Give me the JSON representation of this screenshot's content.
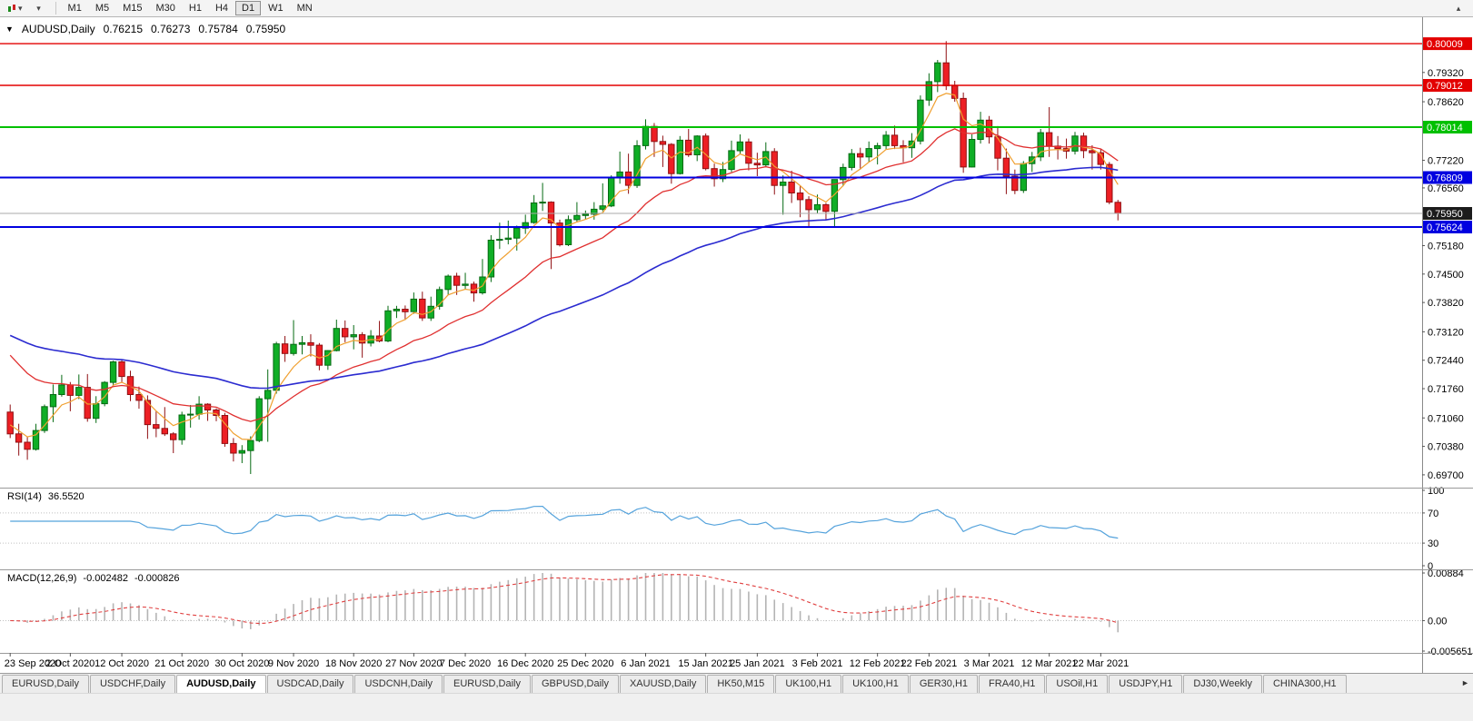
{
  "toolbar": {
    "timeframes": [
      "M1",
      "M5",
      "M15",
      "M30",
      "H1",
      "H4",
      "D1",
      "W1",
      "MN"
    ],
    "active_timeframe": "D1"
  },
  "icons": {
    "caret_down": "▾",
    "collapse_chart": "▴",
    "quote_collapse": "▼",
    "tab_scroll_right": "►"
  },
  "chart": {
    "symbol": "AUDUSD,Daily",
    "ohlc": {
      "open": "0.76215",
      "high": "0.76273",
      "low": "0.75784",
      "close": "0.75950"
    },
    "colors": {
      "up": "#0fae26",
      "up_border": "#056a12",
      "down": "#ed1f24",
      "down_border": "#8f0f12",
      "axis_border": "#8a8a8a",
      "separator": "#9a9a9a",
      "grid_dotted": "#c0c0c0",
      "date_tick": "#555555"
    },
    "price_range": {
      "top": 0.8064,
      "bottom": 0.69394
    },
    "levels": [
      {
        "label": "0.80009",
        "color": "#e30000",
        "width": 1.4
      },
      {
        "label": "0.79012",
        "color": "#e30000",
        "width": 1.4
      },
      {
        "label": "0.78014",
        "color": "#00c000",
        "width": 2
      },
      {
        "label": "0.76809",
        "color": "#0000e0",
        "width": 2
      },
      {
        "label": "0.75624",
        "color": "#0000e0",
        "width": 2
      }
    ],
    "current_price": {
      "label": "0.75950",
      "line_color": "#a8a8a8",
      "box_color": "#1c1c1c"
    },
    "axis_labels": [
      "0.79320",
      "0.78620",
      "0.77220",
      "0.76560",
      "0.75180",
      "0.74500",
      "0.73820",
      "0.73120",
      "0.72440",
      "0.71760",
      "0.71060",
      "0.70380",
      "0.69700"
    ],
    "moving_averages": [
      {
        "name": "ma-fast-orange",
        "period": 5,
        "seed": 0.71,
        "color": "#f0a030",
        "width": 1.2
      },
      {
        "name": "ma-mid-red",
        "period": 18,
        "seed": 0.7278,
        "color": "#e03030",
        "width": 1.3
      },
      {
        "name": "ma-slow-blue",
        "period": 55,
        "seed": 0.7312,
        "color": "#2b2bd0",
        "width": 1.6
      }
    ],
    "rsi": {
      "label": "RSI(14)",
      "value": "36.5520",
      "period": 14,
      "color": "#55a3dc",
      "axis_labels": [
        "100",
        "70",
        "30",
        "0"
      ],
      "dotted_levels": [
        70,
        30
      ]
    },
    "macd": {
      "label": "MACD(12,26,9)",
      "macd_value": "-0.002482",
      "signal_value": "-0.000826",
      "fast": 12,
      "slow": 26,
      "signal": 9,
      "range": {
        "max": 0.00884,
        "min": -0.005651
      },
      "axis_labels": [
        "0.00884",
        "0.00",
        "-0.005651"
      ],
      "hist_color": "#b4b4b4",
      "signal_color": "#e04040"
    },
    "date_ticks": [
      {
        "index": 0,
        "label": "23 Sep 2020"
      },
      {
        "index": 7,
        "label": "2 Oct 2020"
      },
      {
        "index": 13,
        "label": "12 Oct 2020"
      },
      {
        "index": 20,
        "label": "21 Oct 2020"
      },
      {
        "index": 27,
        "label": "30 Oct 2020"
      },
      {
        "index": 33,
        "label": "9 Nov 2020"
      },
      {
        "index": 40,
        "label": "18 Nov 2020"
      },
      {
        "index": 47,
        "label": "27 Nov 2020"
      },
      {
        "index": 53,
        "label": "7 Dec 2020"
      },
      {
        "index": 60,
        "label": "16 Dec 2020"
      },
      {
        "index": 67,
        "label": "25 Dec 2020"
      },
      {
        "index": 74,
        "label": "6 Jan 2021"
      },
      {
        "index": 81,
        "label": "15 Jan 2021"
      },
      {
        "index": 87,
        "label": "25 Jan 2021"
      },
      {
        "index": 94,
        "label": "3 Feb 2021"
      },
      {
        "index": 101,
        "label": "12 Feb 2021"
      },
      {
        "index": 107,
        "label": "22 Feb 2021"
      },
      {
        "index": 114,
        "label": "3 Mar 2021"
      },
      {
        "index": 121,
        "label": "12 Mar 2021"
      },
      {
        "index": 127,
        "label": "22 Mar 2021"
      }
    ],
    "candles": [
      [
        0.712,
        0.7138,
        0.7058,
        0.7068
      ],
      [
        0.7068,
        0.7092,
        0.7016,
        0.7048
      ],
      [
        0.7048,
        0.7062,
        0.7006,
        0.7031
      ],
      [
        0.7031,
        0.7092,
        0.7028,
        0.7076
      ],
      [
        0.7076,
        0.7138,
        0.707,
        0.7133
      ],
      [
        0.7133,
        0.7186,
        0.7096,
        0.7162
      ],
      [
        0.7162,
        0.7209,
        0.7157,
        0.7185
      ],
      [
        0.7185,
        0.7192,
        0.7122,
        0.716
      ],
      [
        0.716,
        0.721,
        0.7151,
        0.7179
      ],
      [
        0.7179,
        0.7211,
        0.7097,
        0.7105
      ],
      [
        0.7105,
        0.7158,
        0.7094,
        0.714
      ],
      [
        0.714,
        0.7194,
        0.7134,
        0.7191
      ],
      [
        0.7191,
        0.7243,
        0.7183,
        0.724
      ],
      [
        0.724,
        0.7246,
        0.719,
        0.7205
      ],
      [
        0.7205,
        0.7219,
        0.7146,
        0.7162
      ],
      [
        0.7162,
        0.7181,
        0.7128,
        0.7148
      ],
      [
        0.7148,
        0.716,
        0.7056,
        0.709
      ],
      [
        0.709,
        0.7122,
        0.706,
        0.7081
      ],
      [
        0.7081,
        0.7132,
        0.7063,
        0.7068
      ],
      [
        0.7068,
        0.7072,
        0.7022,
        0.7054
      ],
      [
        0.7054,
        0.7121,
        0.7042,
        0.7113
      ],
      [
        0.7113,
        0.7137,
        0.7083,
        0.7115
      ],
      [
        0.7115,
        0.7158,
        0.7102,
        0.7139
      ],
      [
        0.7139,
        0.7141,
        0.7099,
        0.7125
      ],
      [
        0.7125,
        0.7129,
        0.7098,
        0.7112
      ],
      [
        0.7112,
        0.7118,
        0.7037,
        0.7045
      ],
      [
        0.7045,
        0.7058,
        0.7002,
        0.7022
      ],
      [
        0.7022,
        0.7041,
        0.6998,
        0.7028
      ],
      [
        0.7028,
        0.7062,
        0.6972,
        0.7052
      ],
      [
        0.7052,
        0.7158,
        0.7048,
        0.7152
      ],
      [
        0.7152,
        0.7222,
        0.7049,
        0.7172
      ],
      [
        0.7172,
        0.7288,
        0.7164,
        0.7283
      ],
      [
        0.7283,
        0.7302,
        0.724,
        0.726
      ],
      [
        0.726,
        0.734,
        0.7255,
        0.7282
      ],
      [
        0.7282,
        0.7302,
        0.7258,
        0.7286
      ],
      [
        0.7286,
        0.7306,
        0.7253,
        0.728
      ],
      [
        0.728,
        0.7285,
        0.722,
        0.7232
      ],
      [
        0.7232,
        0.7268,
        0.7221,
        0.7267
      ],
      [
        0.7267,
        0.7341,
        0.7265,
        0.732
      ],
      [
        0.732,
        0.7339,
        0.7287,
        0.73
      ],
      [
        0.73,
        0.7328,
        0.727,
        0.7305
      ],
      [
        0.7305,
        0.7311,
        0.725,
        0.7285
      ],
      [
        0.7285,
        0.7316,
        0.7277,
        0.7302
      ],
      [
        0.7302,
        0.7338,
        0.7287,
        0.729
      ],
      [
        0.729,
        0.7374,
        0.7287,
        0.7362
      ],
      [
        0.7362,
        0.7374,
        0.7345,
        0.7366
      ],
      [
        0.7366,
        0.7375,
        0.734,
        0.736
      ],
      [
        0.736,
        0.7406,
        0.7355,
        0.739
      ],
      [
        0.739,
        0.7408,
        0.7338,
        0.7345
      ],
      [
        0.7345,
        0.7396,
        0.7338,
        0.7373
      ],
      [
        0.7373,
        0.742,
        0.7365,
        0.7413
      ],
      [
        0.7413,
        0.7449,
        0.74,
        0.7445
      ],
      [
        0.7445,
        0.7453,
        0.74,
        0.7423
      ],
      [
        0.7423,
        0.7453,
        0.7413,
        0.7426
      ],
      [
        0.7426,
        0.7432,
        0.7384,
        0.7405
      ],
      [
        0.7405,
        0.7486,
        0.7401,
        0.7443
      ],
      [
        0.7443,
        0.7543,
        0.7431,
        0.7531
      ],
      [
        0.7531,
        0.7573,
        0.751,
        0.7533
      ],
      [
        0.7533,
        0.7578,
        0.7521,
        0.7536
      ],
      [
        0.7536,
        0.7566,
        0.7506,
        0.756
      ],
      [
        0.756,
        0.7592,
        0.7546,
        0.7573
      ],
      [
        0.7573,
        0.7639,
        0.757,
        0.762
      ],
      [
        0.762,
        0.7668,
        0.7601,
        0.7622
      ],
      [
        0.7622,
        0.7624,
        0.7462,
        0.7572
      ],
      [
        0.7572,
        0.758,
        0.7516,
        0.752
      ],
      [
        0.752,
        0.759,
        0.7517,
        0.758
      ],
      [
        0.758,
        0.7622,
        0.7575,
        0.759
      ],
      [
        0.759,
        0.7602,
        0.758,
        0.7593
      ],
      [
        0.7593,
        0.7622,
        0.758,
        0.7605
      ],
      [
        0.7605,
        0.7667,
        0.76,
        0.7613
      ],
      [
        0.7613,
        0.7686,
        0.761,
        0.7682
      ],
      [
        0.7682,
        0.7743,
        0.7666,
        0.7694
      ],
      [
        0.7694,
        0.7738,
        0.7642,
        0.7662
      ],
      [
        0.7662,
        0.777,
        0.7656,
        0.7757
      ],
      [
        0.7757,
        0.782,
        0.7748,
        0.7803
      ],
      [
        0.7803,
        0.7811,
        0.773,
        0.7767
      ],
      [
        0.7767,
        0.7781,
        0.7706,
        0.776
      ],
      [
        0.776,
        0.7763,
        0.7666,
        0.769
      ],
      [
        0.769,
        0.778,
        0.7688,
        0.777
      ],
      [
        0.777,
        0.7797,
        0.773,
        0.7735
      ],
      [
        0.7735,
        0.7782,
        0.772,
        0.778
      ],
      [
        0.778,
        0.7786,
        0.7698,
        0.7702
      ],
      [
        0.7702,
        0.7714,
        0.7659,
        0.7678
      ],
      [
        0.7678,
        0.7718,
        0.767,
        0.77
      ],
      [
        0.77,
        0.7769,
        0.7694,
        0.7745
      ],
      [
        0.7745,
        0.7784,
        0.7736,
        0.7766
      ],
      [
        0.7766,
        0.7774,
        0.7698,
        0.7715
      ],
      [
        0.7715,
        0.774,
        0.7684,
        0.7711
      ],
      [
        0.7711,
        0.7765,
        0.7705,
        0.7743
      ],
      [
        0.7743,
        0.7751,
        0.764,
        0.7662
      ],
      [
        0.7662,
        0.7686,
        0.7592,
        0.767
      ],
      [
        0.767,
        0.7697,
        0.762,
        0.7644
      ],
      [
        0.7644,
        0.7662,
        0.7586,
        0.7628
      ],
      [
        0.7628,
        0.7636,
        0.7564,
        0.7604
      ],
      [
        0.7604,
        0.764,
        0.7596,
        0.7616
      ],
      [
        0.7616,
        0.762,
        0.7581,
        0.76
      ],
      [
        0.76,
        0.7676,
        0.7562,
        0.7676
      ],
      [
        0.7676,
        0.7714,
        0.766,
        0.7705
      ],
      [
        0.7705,
        0.7749,
        0.7698,
        0.7738
      ],
      [
        0.7738,
        0.7752,
        0.77,
        0.773
      ],
      [
        0.773,
        0.7767,
        0.7717,
        0.775
      ],
      [
        0.775,
        0.7764,
        0.7712,
        0.7757
      ],
      [
        0.7757,
        0.7792,
        0.7747,
        0.7782
      ],
      [
        0.7782,
        0.7805,
        0.7749,
        0.7757
      ],
      [
        0.7757,
        0.777,
        0.7717,
        0.7752
      ],
      [
        0.7752,
        0.7787,
        0.7728,
        0.7768
      ],
      [
        0.7768,
        0.7877,
        0.776,
        0.7866
      ],
      [
        0.7866,
        0.793,
        0.7852,
        0.791
      ],
      [
        0.791,
        0.7962,
        0.7885,
        0.7955
      ],
      [
        0.7955,
        0.8007,
        0.789,
        0.79
      ],
      [
        0.79,
        0.7912,
        0.7862,
        0.787
      ],
      [
        0.787,
        0.7884,
        0.7692,
        0.7706
      ],
      [
        0.7706,
        0.7784,
        0.7705,
        0.7772
      ],
      [
        0.7772,
        0.7838,
        0.7762,
        0.7818
      ],
      [
        0.7818,
        0.7828,
        0.7762,
        0.7778
      ],
      [
        0.7778,
        0.7804,
        0.7698,
        0.7727
      ],
      [
        0.7727,
        0.775,
        0.7641,
        0.7684
      ],
      [
        0.7684,
        0.77,
        0.7641,
        0.765
      ],
      [
        0.765,
        0.772,
        0.7644,
        0.7714
      ],
      [
        0.7714,
        0.7742,
        0.7694,
        0.773
      ],
      [
        0.773,
        0.7797,
        0.772,
        0.7788
      ],
      [
        0.7788,
        0.7849,
        0.773,
        0.7756
      ],
      [
        0.7756,
        0.778,
        0.7724,
        0.775
      ],
      [
        0.775,
        0.7774,
        0.7726,
        0.7744
      ],
      [
        0.7744,
        0.779,
        0.7736,
        0.778
      ],
      [
        0.778,
        0.7788,
        0.7727,
        0.7745
      ],
      [
        0.7745,
        0.7758,
        0.77,
        0.774
      ],
      [
        0.774,
        0.775,
        0.77,
        0.7712
      ],
      [
        0.7712,
        0.7718,
        0.7617,
        0.7622
      ],
      [
        0.76215,
        0.76273,
        0.75784,
        0.7595
      ]
    ]
  },
  "tabs": {
    "active_index": 2,
    "items": [
      "EURUSD,Daily",
      "USDCHF,Daily",
      "AUDUSD,Daily",
      "USDCAD,Daily",
      "USDCNH,Daily",
      "EURUSD,Daily",
      "GBPUSD,Daily",
      "XAUUSD,Daily",
      "HK50,M15",
      "UK100,H1",
      "UK100,H1",
      "GER30,H1",
      "FRA40,H1",
      "USOil,H1",
      "USDJPY,H1",
      "DJ30,Weekly",
      "CHINA300,H1"
    ]
  }
}
